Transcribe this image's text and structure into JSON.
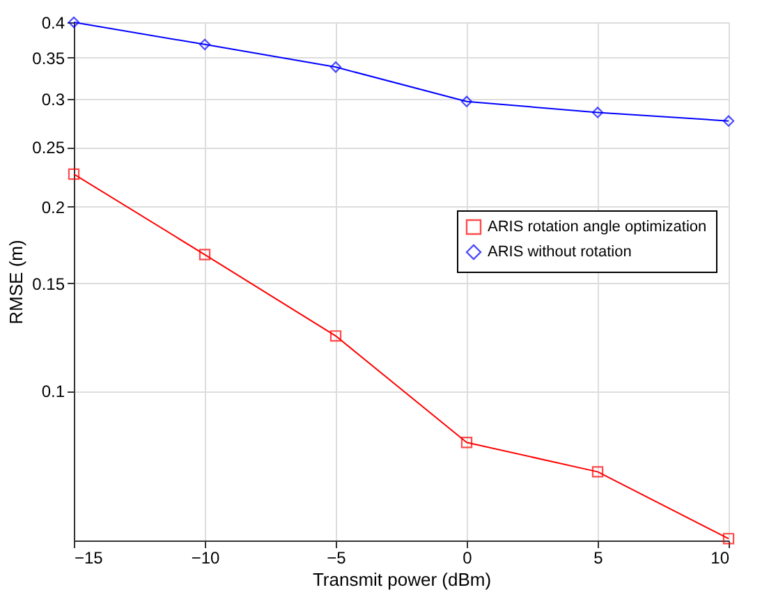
{
  "chart_data": {
    "type": "line",
    "xlabel": "Transmit power (dBm)",
    "ylabel": "RMSE (m)",
    "x": [
      -15,
      -10,
      -5,
      0,
      5,
      10
    ],
    "series": [
      {
        "name": "ARIS rotation angle optimization",
        "color": "#ff0000",
        "marker": "square",
        "values": [
          0.226,
          0.167,
          0.123,
          0.0824,
          0.0738,
          0.0574
        ]
      },
      {
        "name": "ARIS without rotation",
        "color": "#0000ff",
        "marker": "diamond",
        "values": [
          0.4,
          0.368,
          0.338,
          0.297,
          0.285,
          0.276
        ]
      }
    ],
    "xlim": [
      -15,
      10
    ],
    "xticks": [
      -15,
      -10,
      -5,
      0,
      5,
      10
    ],
    "ylim": [
      0.057,
      0.4
    ],
    "yticks": [
      0.1,
      0.15,
      0.2,
      0.25,
      0.3,
      0.35,
      0.4
    ],
    "log": "y",
    "grid": true,
    "line_style": "solid",
    "legend": "right"
  }
}
